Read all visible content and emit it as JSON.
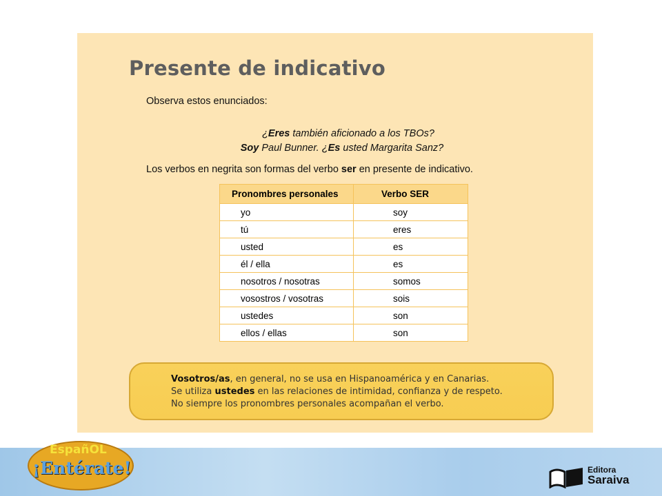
{
  "title": "Presente de indicativo",
  "intro": "Observa estos enunciados:",
  "example1": {
    "p1": "¿",
    "b1": "Eres",
    "p2": " también aficionado a los TBOs?"
  },
  "example2": {
    "b1": "Soy",
    "p1": " Paul Bunner. ¿",
    "b2": "Es",
    "p2": " usted Margarita Sanz?"
  },
  "explanation": {
    "p1": "Los verbos en negrita son formas del verbo ",
    "b1": "ser",
    "p2": " en presente de indicativo."
  },
  "table": {
    "headers": [
      "Pronombres personales",
      "Verbo SER"
    ],
    "rows": [
      [
        "yo",
        "soy"
      ],
      [
        "tú",
        "eres"
      ],
      [
        "usted",
        "es"
      ],
      [
        "él / ella",
        "es"
      ],
      [
        "nosotros / nosotras",
        "somos"
      ],
      [
        "vosostros / vosotras",
        "sois"
      ],
      [
        "ustedes",
        "son"
      ],
      [
        "ellos / ellas",
        "son"
      ]
    ]
  },
  "note": {
    "l1b": "Vosotros/as",
    "l1": ", en general, no se usa en Hispanoamérica y en Canarias.",
    "l2a": "Se utiliza ",
    "l2b": "ustedes",
    "l2c": " en las relaciones de intimidad, confianza y de respeto.",
    "l3": "No siempre los pronombres personales acompañan el verbo."
  },
  "logo": {
    "line1": "EspañOL",
    "line2": "¡Entérate!"
  },
  "publisher": {
    "line1": "Editora",
    "line2": "Saraiva"
  },
  "colors": {
    "panel": "#fde5b5",
    "note": "#f9d15a",
    "table_border": "#f5c25a"
  }
}
